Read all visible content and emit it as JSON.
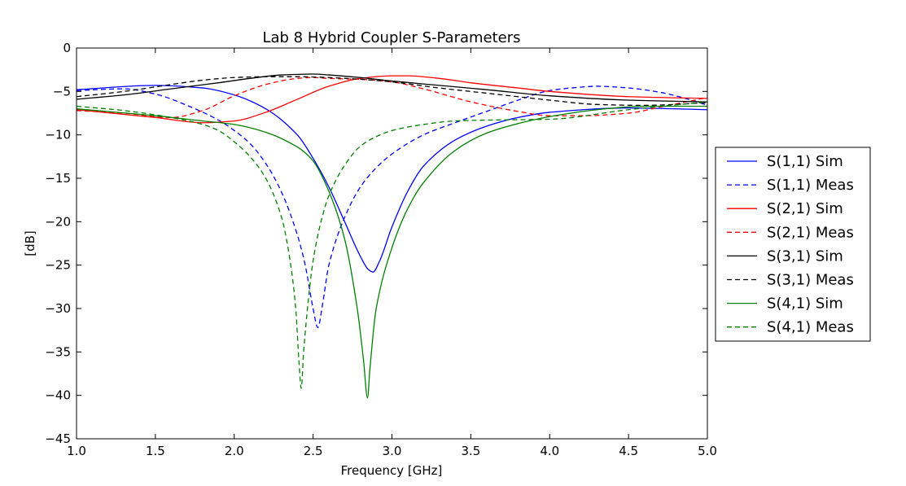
{
  "chart_data": {
    "type": "line",
    "title": "Lab 8 Hybrid Coupler S-Parameters",
    "xlabel": "Frequency [GHz]",
    "ylabel": "[dB]",
    "xlim": [
      1.0,
      5.0
    ],
    "ylim": [
      -45,
      0
    ],
    "xticks": [
      "1.0",
      "1.5",
      "2.0",
      "2.5",
      "3.0",
      "3.5",
      "4.0",
      "4.5",
      "5.0"
    ],
    "yticks": [
      "0",
      "−5",
      "−10",
      "−15",
      "−20",
      "−25",
      "−30",
      "−35",
      "−40",
      "−45"
    ],
    "grid": false,
    "legend_position": "center-right-outside",
    "series": [
      {
        "name": "S(1,1) Sim",
        "color": "#0000ff",
        "dash": "solid",
        "x": [
          1.0,
          1.5,
          1.8,
          2.0,
          2.2,
          2.4,
          2.5,
          2.6,
          2.7,
          2.8,
          2.85,
          2.88,
          2.92,
          3.0,
          3.1,
          3.2,
          3.4,
          3.6,
          3.8,
          4.0,
          4.5,
          5.0
        ],
        "y": [
          -4.8,
          -4.3,
          -4.6,
          -5.4,
          -7.0,
          -10.0,
          -12.7,
          -16.0,
          -20.0,
          -24.0,
          -25.5,
          -25.8,
          -24.6,
          -20.6,
          -16.5,
          -13.6,
          -10.6,
          -9.0,
          -8.0,
          -7.4,
          -6.9,
          -7.1
        ]
      },
      {
        "name": "S(1,1) Meas",
        "color": "#0000ff",
        "dash": "dashed",
        "x": [
          1.0,
          1.3,
          1.5,
          1.7,
          1.9,
          2.0,
          2.1,
          2.2,
          2.3,
          2.4,
          2.45,
          2.5,
          2.53,
          2.56,
          2.6,
          2.7,
          2.8,
          2.9,
          3.0,
          3.2,
          3.4,
          3.6,
          3.8,
          4.0,
          4.2,
          4.3,
          4.5,
          4.7,
          4.9,
          5.0
        ],
        "y": [
          -4.9,
          -4.7,
          -5.3,
          -6.6,
          -8.3,
          -9.5,
          -11.0,
          -13.3,
          -16.6,
          -21.5,
          -25.0,
          -30.0,
          -32.2,
          -29.5,
          -25.0,
          -19.5,
          -16.0,
          -13.8,
          -12.2,
          -10.0,
          -8.6,
          -7.3,
          -6.0,
          -4.9,
          -4.5,
          -4.4,
          -4.6,
          -5.1,
          -6.0,
          -6.6
        ]
      },
      {
        "name": "S(2,1) Sim",
        "color": "#ff0000",
        "dash": "solid",
        "x": [
          1.0,
          1.5,
          1.8,
          2.0,
          2.2,
          2.4,
          2.6,
          2.8,
          3.0,
          3.1,
          3.3,
          3.5,
          3.8,
          4.0,
          4.5,
          5.0
        ],
        "y": [
          -7.1,
          -8.0,
          -8.6,
          -8.4,
          -7.4,
          -5.9,
          -4.4,
          -3.5,
          -3.2,
          -3.2,
          -3.5,
          -4.0,
          -4.6,
          -5.0,
          -5.6,
          -5.8
        ]
      },
      {
        "name": "S(2,1) Meas",
        "color": "#ff0000",
        "dash": "dashed",
        "x": [
          1.0,
          1.3,
          1.6,
          1.8,
          2.0,
          2.2,
          2.4,
          2.5,
          2.6,
          2.8,
          3.0,
          3.2,
          3.5,
          3.8,
          4.0,
          4.2,
          4.5,
          4.7,
          5.0
        ],
        "y": [
          -7.2,
          -7.5,
          -8.0,
          -7.2,
          -5.5,
          -4.2,
          -3.5,
          -3.4,
          -3.5,
          -3.6,
          -3.9,
          -4.7,
          -6.2,
          -7.3,
          -7.8,
          -7.8,
          -7.5,
          -6.8,
          -5.7
        ]
      },
      {
        "name": "S(3,1) Sim",
        "color": "#000000",
        "dash": "solid",
        "x": [
          1.0,
          1.3,
          1.6,
          1.9,
          2.1,
          2.3,
          2.5,
          2.6,
          2.8,
          3.0,
          3.3,
          3.6,
          4.0,
          4.5,
          5.0
        ],
        "y": [
          -5.9,
          -5.4,
          -4.7,
          -4.0,
          -3.5,
          -3.1,
          -3.0,
          -3.1,
          -3.4,
          -3.8,
          -4.3,
          -4.8,
          -5.5,
          -6.0,
          -6.2
        ]
      },
      {
        "name": "S(3,1) Meas",
        "color": "#000000",
        "dash": "dashed",
        "x": [
          1.0,
          1.3,
          1.6,
          1.8,
          2.0,
          2.2,
          2.4,
          2.6,
          2.8,
          3.0,
          3.3,
          3.6,
          4.0,
          4.3,
          4.6,
          5.0
        ],
        "y": [
          -5.6,
          -5.0,
          -4.2,
          -3.7,
          -3.4,
          -3.3,
          -3.3,
          -3.4,
          -3.6,
          -3.9,
          -4.6,
          -5.2,
          -6.0,
          -6.5,
          -6.6,
          -6.3
        ]
      },
      {
        "name": "S(4,1) Sim",
        "color": "#008000",
        "dash": "solid",
        "x": [
          1.0,
          1.5,
          1.8,
          2.0,
          2.2,
          2.4,
          2.5,
          2.6,
          2.7,
          2.78,
          2.82,
          2.845,
          2.86,
          2.9,
          3.0,
          3.1,
          3.2,
          3.4,
          3.6,
          3.8,
          4.0,
          4.3,
          4.6,
          5.0
        ],
        "y": [
          -7.0,
          -7.8,
          -8.4,
          -8.8,
          -9.7,
          -11.4,
          -13.0,
          -16.5,
          -22.0,
          -30.0,
          -36.0,
          -40.3,
          -37.0,
          -30.0,
          -23.0,
          -18.5,
          -15.5,
          -11.8,
          -9.8,
          -8.7,
          -7.9,
          -7.1,
          -6.7,
          -6.7
        ]
      },
      {
        "name": "S(4,1) Meas",
        "color": "#008000",
        "dash": "dashed",
        "x": [
          1.0,
          1.3,
          1.6,
          1.8,
          1.9,
          2.0,
          2.1,
          2.2,
          2.3,
          2.35,
          2.39,
          2.41,
          2.425,
          2.44,
          2.47,
          2.5,
          2.55,
          2.6,
          2.7,
          2.8,
          2.9,
          3.0,
          3.2,
          3.4,
          3.6,
          4.0,
          4.5,
          5.0
        ],
        "y": [
          -6.7,
          -7.2,
          -8.0,
          -8.8,
          -9.5,
          -10.8,
          -12.5,
          -15.0,
          -19.5,
          -24.0,
          -30.0,
          -36.0,
          -39.2,
          -35.0,
          -29.0,
          -24.5,
          -20.0,
          -17.0,
          -13.5,
          -11.3,
          -10.2,
          -9.5,
          -8.8,
          -8.4,
          -8.3,
          -8.2,
          -7.1,
          -6.2
        ]
      }
    ]
  }
}
